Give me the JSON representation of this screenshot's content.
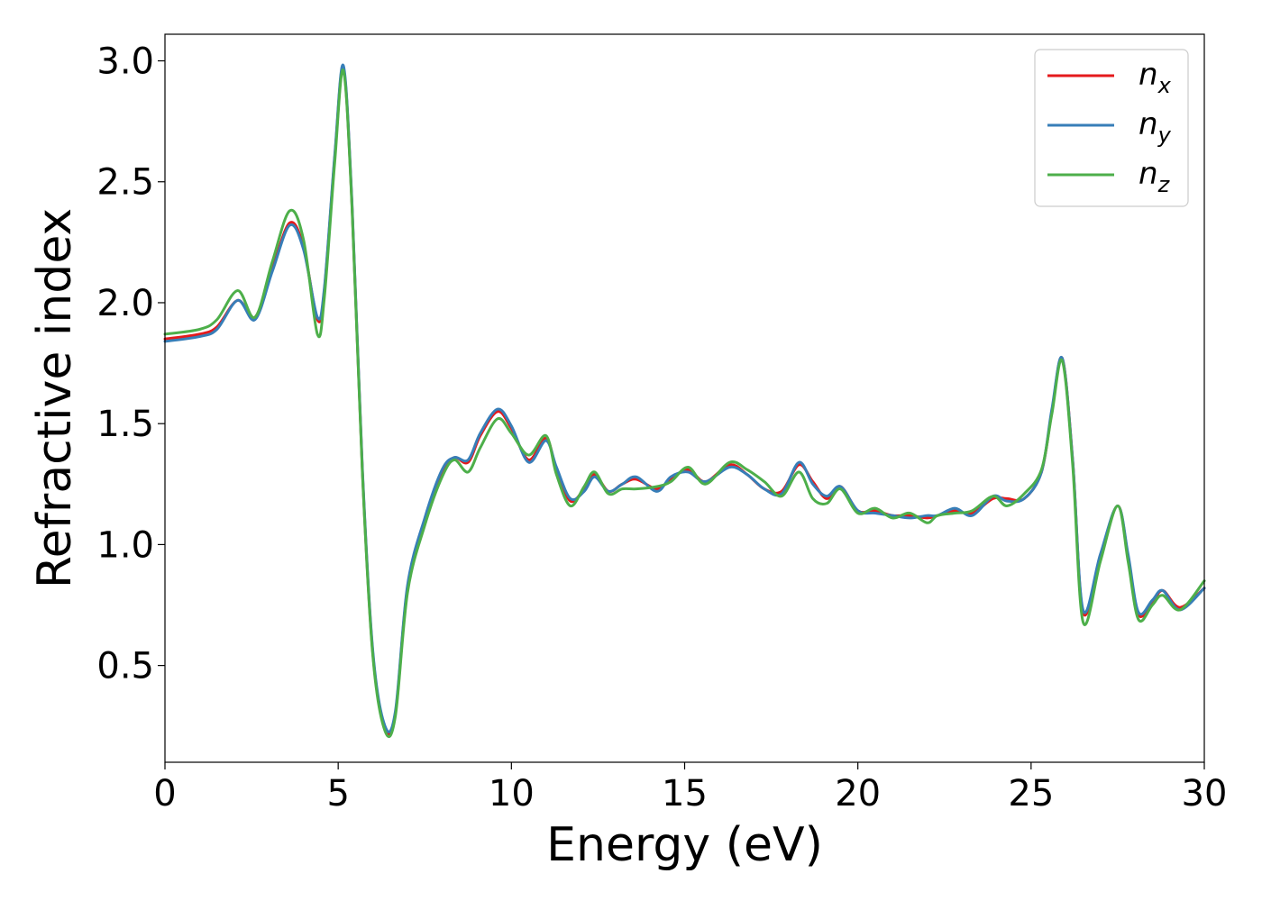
{
  "chart_data": {
    "type": "line",
    "xlabel": "Energy (eV)",
    "ylabel": "Refractive index",
    "xlim": [
      0,
      30
    ],
    "ylim": [
      0.1,
      3.11
    ],
    "xticks": [
      "0",
      "5",
      "10",
      "15",
      "20",
      "25",
      "30"
    ],
    "yticks": [
      "0.5",
      "1.0",
      "1.5",
      "2.0",
      "2.5",
      "3.0"
    ],
    "grid": false,
    "legend_position": "top-right",
    "series": [
      {
        "name": "n",
        "subscript": "x",
        "color": "#e41a1c",
        "x": [
          0,
          1,
          1.5,
          2.1,
          2.6,
          3.1,
          3.6,
          4.0,
          4.4,
          4.6,
          4.9,
          5.15,
          5.4,
          5.7,
          6.0,
          6.35,
          6.65,
          7.0,
          7.5,
          8.0,
          8.35,
          8.75,
          9.1,
          9.6,
          10.0,
          10.5,
          11.0,
          11.3,
          11.7,
          12.1,
          12.4,
          12.8,
          13.2,
          13.6,
          14.2,
          14.6,
          15.1,
          15.6,
          16.3,
          16.8,
          17.3,
          17.8,
          18.3,
          18.7,
          19.1,
          19.5,
          20.0,
          20.5,
          21.0,
          21.5,
          22.0,
          22.3,
          22.8,
          23.3,
          23.9,
          24.3,
          24.8,
          25.3,
          25.6,
          25.9,
          26.2,
          26.5,
          27.0,
          27.5,
          27.8,
          28.1,
          28.5,
          28.8,
          29.3,
          30.0
        ],
        "values": [
          1.85,
          1.87,
          1.9,
          2.01,
          1.94,
          2.14,
          2.33,
          2.23,
          1.93,
          2.05,
          2.6,
          2.97,
          2.4,
          1.3,
          0.55,
          0.24,
          0.3,
          0.82,
          1.1,
          1.3,
          1.36,
          1.34,
          1.45,
          1.55,
          1.48,
          1.35,
          1.44,
          1.31,
          1.18,
          1.23,
          1.29,
          1.22,
          1.25,
          1.27,
          1.23,
          1.27,
          1.31,
          1.26,
          1.33,
          1.29,
          1.23,
          1.22,
          1.33,
          1.26,
          1.19,
          1.24,
          1.14,
          1.14,
          1.12,
          1.12,
          1.11,
          1.12,
          1.14,
          1.13,
          1.19,
          1.19,
          1.19,
          1.3,
          1.55,
          1.77,
          1.35,
          0.72,
          0.95,
          1.16,
          0.95,
          0.71,
          0.76,
          0.81,
          0.74,
          0.82
        ]
      },
      {
        "name": "n",
        "subscript": "y",
        "color": "#377eb8",
        "x": [
          0,
          1,
          1.5,
          2.1,
          2.6,
          3.1,
          3.6,
          4.0,
          4.4,
          4.6,
          4.9,
          5.15,
          5.4,
          5.7,
          6.0,
          6.35,
          6.65,
          7.0,
          7.5,
          8.0,
          8.35,
          8.75,
          9.1,
          9.6,
          10.0,
          10.5,
          11.0,
          11.3,
          11.7,
          12.1,
          12.4,
          12.8,
          13.2,
          13.6,
          14.2,
          14.6,
          15.1,
          15.6,
          16.3,
          16.8,
          17.3,
          17.8,
          18.3,
          18.7,
          19.1,
          19.5,
          20.0,
          20.5,
          21.0,
          21.5,
          22.0,
          22.3,
          22.8,
          23.3,
          23.9,
          24.3,
          24.8,
          25.3,
          25.6,
          25.9,
          26.2,
          26.5,
          27.0,
          27.5,
          27.8,
          28.1,
          28.5,
          28.8,
          29.3,
          30.0
        ],
        "values": [
          1.84,
          1.86,
          1.89,
          2.01,
          1.93,
          2.13,
          2.32,
          2.22,
          1.94,
          2.06,
          2.61,
          2.98,
          2.41,
          1.31,
          0.56,
          0.25,
          0.31,
          0.83,
          1.11,
          1.31,
          1.36,
          1.35,
          1.46,
          1.56,
          1.49,
          1.34,
          1.43,
          1.32,
          1.19,
          1.22,
          1.28,
          1.22,
          1.25,
          1.28,
          1.22,
          1.28,
          1.3,
          1.26,
          1.32,
          1.29,
          1.23,
          1.21,
          1.34,
          1.25,
          1.2,
          1.24,
          1.14,
          1.13,
          1.12,
          1.11,
          1.12,
          1.12,
          1.15,
          1.12,
          1.2,
          1.18,
          1.19,
          1.3,
          1.56,
          1.77,
          1.35,
          0.73,
          0.96,
          1.16,
          0.96,
          0.72,
          0.77,
          0.81,
          0.73,
          0.82
        ]
      },
      {
        "name": "n",
        "subscript": "z",
        "color": "#4daf4a",
        "x": [
          0,
          1,
          1.5,
          2.1,
          2.6,
          3.1,
          3.6,
          4.0,
          4.4,
          4.6,
          4.9,
          5.15,
          5.4,
          5.7,
          6.0,
          6.35,
          6.65,
          7.0,
          7.5,
          8.0,
          8.35,
          8.75,
          9.1,
          9.6,
          10.0,
          10.5,
          11.0,
          11.3,
          11.7,
          12.1,
          12.4,
          12.8,
          13.2,
          13.6,
          14.2,
          14.6,
          15.1,
          15.6,
          16.3,
          16.8,
          17.3,
          17.8,
          18.3,
          18.7,
          19.1,
          19.5,
          20.0,
          20.5,
          21.0,
          21.5,
          22.0,
          22.3,
          22.8,
          23.3,
          23.9,
          24.3,
          24.8,
          25.3,
          25.6,
          25.9,
          26.2,
          26.5,
          27.0,
          27.5,
          27.8,
          28.1,
          28.5,
          28.8,
          29.3,
          30.0
        ],
        "values": [
          1.87,
          1.89,
          1.93,
          2.05,
          1.94,
          2.17,
          2.38,
          2.26,
          1.87,
          2.02,
          2.58,
          2.96,
          2.39,
          1.29,
          0.54,
          0.23,
          0.29,
          0.8,
          1.08,
          1.28,
          1.35,
          1.3,
          1.4,
          1.52,
          1.46,
          1.37,
          1.45,
          1.29,
          1.16,
          1.24,
          1.3,
          1.21,
          1.23,
          1.23,
          1.24,
          1.26,
          1.32,
          1.25,
          1.34,
          1.31,
          1.26,
          1.2,
          1.3,
          1.19,
          1.17,
          1.23,
          1.13,
          1.15,
          1.11,
          1.13,
          1.09,
          1.12,
          1.13,
          1.14,
          1.2,
          1.16,
          1.21,
          1.31,
          1.54,
          1.76,
          1.33,
          0.68,
          0.93,
          1.16,
          0.93,
          0.69,
          0.75,
          0.79,
          0.73,
          0.85
        ]
      }
    ]
  }
}
